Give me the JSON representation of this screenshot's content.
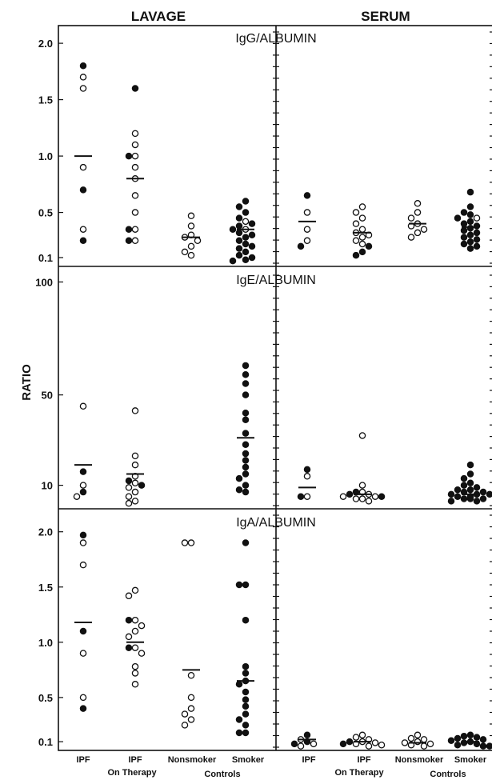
{
  "chart_data": {
    "type": "scatter",
    "column_titles": [
      "LAVAGE",
      "SERUM"
    ],
    "ylabel": "RATIO",
    "categories": [
      "IPF",
      "IPF On Therapy",
      "Nonsmoker Controls",
      "Smoker Controls"
    ],
    "category_labels": [
      {
        "line1": "IPF",
        "line2": ""
      },
      {
        "line1": "IPF",
        "line2": "On Therapy"
      },
      {
        "line1": "Nonsmoker",
        "line2": "Controls"
      },
      {
        "line1": "Smoker",
        "line2": ""
      }
    ],
    "legend_note": "open circles = nonsmokers, filled circles = smokers (not printed)",
    "panels": [
      {
        "title": "IgG/ALBUMIN",
        "ylim": [
          0.05,
          2.1
        ],
        "yticks": [
          0.1,
          0.5,
          1.0,
          1.5,
          2.0
        ],
        "ytick_labels": [
          "0.1",
          "0.5",
          "1.0",
          "1.5",
          "2.0"
        ],
        "lavage": [
          {
            "mean": 1.0,
            "open": [
              1.7,
              1.6,
              0.9,
              0.35
            ],
            "filled": [
              1.8,
              0.7,
              0.25
            ]
          },
          {
            "mean": 0.8,
            "open": [
              1.2,
              1.1,
              1.0,
              0.9,
              0.8,
              0.65,
              0.5,
              0.35,
              0.25
            ],
            "filled": [
              1.6,
              1.0,
              0.35,
              0.25
            ]
          },
          {
            "mean": 0.28,
            "open": [
              0.47,
              0.38,
              0.3,
              0.28,
              0.25,
              0.2,
              0.15,
              0.12
            ],
            "filled": []
          },
          {
            "mean": 0.35,
            "open": [
              0.42,
              0.35
            ],
            "filled": [
              0.6,
              0.55,
              0.5,
              0.45,
              0.4,
              0.38,
              0.35,
              0.32,
              0.3,
              0.28,
              0.25,
              0.22,
              0.2,
              0.18,
              0.15,
              0.12,
              0.1,
              0.08,
              0.07
            ]
          }
        ],
        "serum": [
          {
            "mean": 0.42,
            "open": [
              0.5,
              0.35,
              0.25
            ],
            "filled": [
              0.65,
              0.2
            ]
          },
          {
            "mean": 0.32,
            "open": [
              0.55,
              0.5,
              0.45,
              0.4,
              0.35,
              0.32,
              0.3,
              0.28,
              0.25,
              0.22
            ],
            "filled": [
              0.2,
              0.15,
              0.12
            ]
          },
          {
            "mean": 0.4,
            "open": [
              0.58,
              0.5,
              0.45,
              0.4,
              0.38,
              0.35,
              0.32,
              0.28
            ],
            "filled": []
          },
          {
            "mean": 0.37,
            "open": [
              0.45
            ],
            "filled": [
              0.68,
              0.55,
              0.5,
              0.48,
              0.45,
              0.42,
              0.4,
              0.38,
              0.36,
              0.34,
              0.32,
              0.3,
              0.28,
              0.26,
              0.24,
              0.22,
              0.2,
              0.18
            ]
          }
        ]
      },
      {
        "title": "IgE/ALBUMIN",
        "ylim": [
          1.0,
          103.0
        ],
        "yticks": [
          10,
          50,
          100
        ],
        "ytick_labels": [
          "10",
          "50",
          "100"
        ],
        "lavage": [
          {
            "mean": 19,
            "open": [
              45,
              10,
              5
            ],
            "filled": [
              16,
              7
            ]
          },
          {
            "mean": 15,
            "open": [
              43,
              23,
              19,
              14,
              11,
              9,
              7,
              5,
              3,
              2
            ],
            "filled": [
              12,
              10
            ]
          },
          null,
          {
            "mean": 31,
            "open": [],
            "filled": [
              63,
              59,
              55,
              50,
              42,
              39,
              33,
              28,
              24,
              21,
              18,
              15,
              13,
              10,
              8,
              7
            ]
          }
        ],
        "serum": [
          {
            "mean": 9,
            "open": [
              14,
              5
            ],
            "filled": [
              17,
              5
            ]
          },
          {
            "mean": 6,
            "open": [
              32,
              10,
              7,
              6,
              5,
              5,
              4,
              4,
              3
            ],
            "filled": [
              7,
              6,
              5
            ]
          },
          null,
          {
            "mean": 6,
            "open": [],
            "filled": [
              19,
              15,
              13,
              11,
              10,
              9,
              8,
              8,
              7,
              7,
              6,
              6,
              6,
              5,
              5,
              5,
              4,
              4,
              4,
              3,
              3
            ]
          }
        ]
      },
      {
        "title": "IgA/ALBUMIN",
        "ylim": [
          0.05,
          2.15
        ],
        "yticks": [
          0.1,
          0.5,
          1.0,
          1.5,
          2.0
        ],
        "ytick_labels": [
          "0.1",
          "0.5",
          "1.0",
          "1.5",
          "2.0"
        ],
        "lavage": [
          {
            "mean": 1.18,
            "open": [
              1.9,
              1.7,
              0.9,
              0.5
            ],
            "filled": [
              1.97,
              1.1,
              0.4
            ]
          },
          {
            "mean": 1.0,
            "open": [
              1.47,
              1.42,
              1.2,
              1.15,
              1.1,
              1.05,
              0.95,
              0.9,
              0.78,
              0.72,
              0.62
            ],
            "filled": [
              1.2,
              0.95
            ]
          },
          {
            "mean": 0.75,
            "open": [
              1.9,
              1.9,
              0.7,
              0.5,
              0.4,
              0.35,
              0.3,
              0.25
            ],
            "filled": []
          },
          {
            "mean": 0.65,
            "open": [],
            "filled": [
              1.9,
              1.52,
              1.52,
              1.2,
              0.78,
              0.72,
              0.65,
              0.62,
              0.55,
              0.48,
              0.42,
              0.35,
              0.3,
              0.25,
              0.18,
              0.18
            ]
          }
        ],
        "serum": [
          {
            "mean": 0.12,
            "open": [
              0.12,
              0.08,
              0.06
            ],
            "filled": [
              0.16,
              0.1,
              0.08
            ]
          },
          {
            "mean": 0.1,
            "open": [
              0.16,
              0.14,
              0.12,
              0.1,
              0.09,
              0.08,
              0.07,
              0.06
            ],
            "filled": [
              0.1,
              0.08
            ]
          },
          {
            "mean": 0.09,
            "open": [
              0.16,
              0.13,
              0.12,
              0.1,
              0.09,
              0.08,
              0.07,
              0.06
            ],
            "filled": []
          },
          {
            "mean": 0.1,
            "open": [],
            "filled": [
              0.16,
              0.15,
              0.14,
              0.13,
              0.12,
              0.11,
              0.1,
              0.09,
              0.08,
              0.07,
              0.06,
              0.06
            ]
          }
        ]
      }
    ]
  }
}
